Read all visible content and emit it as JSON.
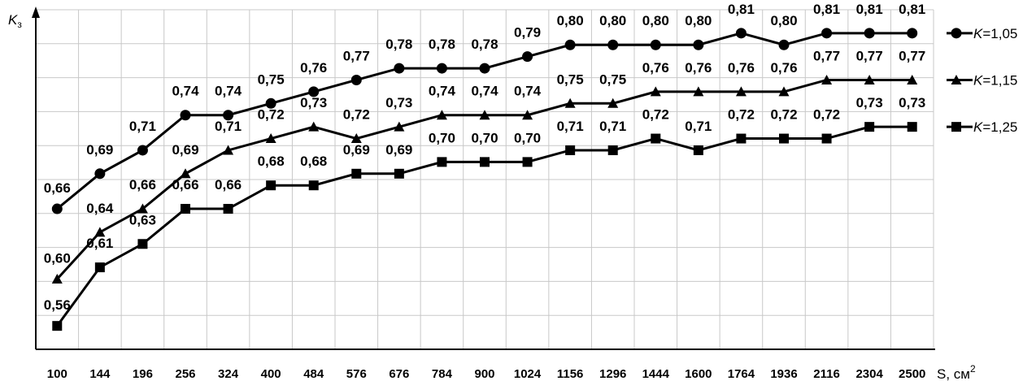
{
  "chart_data": {
    "type": "line",
    "x": [
      "100",
      "144",
      "196",
      "256",
      "324",
      "400",
      "484",
      "576",
      "676",
      "784",
      "900",
      "1024",
      "1156",
      "1296",
      "1444",
      "1600",
      "1764",
      "1936",
      "2116",
      "2304",
      "2500"
    ],
    "ylabel_main": "K",
    "ylabel_sub": "з",
    "xlabel": "S, см",
    "xlabel_sup": "2",
    "ylim": [
      0.54,
      0.83
    ],
    "grid": true,
    "legend_position": "right",
    "series": [
      {
        "name": "K=1,05",
        "legend_italic": "K",
        "legend_rest": "=1,05",
        "marker": "circle",
        "values": [
          0.66,
          0.69,
          0.71,
          0.74,
          0.74,
          0.75,
          0.76,
          0.77,
          0.78,
          0.78,
          0.78,
          0.79,
          0.8,
          0.8,
          0.8,
          0.8,
          0.81,
          0.8,
          0.81,
          0.81,
          0.81
        ],
        "labels": [
          "0,66",
          "0,69",
          "0,71",
          "0,74",
          "0,74",
          "0,75",
          "0,76",
          "0,77",
          "0,78",
          "0,78",
          "0,78",
          "0,79",
          "0,80",
          "0,80",
          "0,80",
          "0,80",
          "0,81",
          "0,80",
          "0,81",
          "0,81",
          "0,81"
        ]
      },
      {
        "name": "K=1,15",
        "legend_italic": "K",
        "legend_rest": "=1,15",
        "marker": "triangle",
        "values": [
          0.6,
          0.64,
          0.66,
          0.69,
          0.71,
          0.72,
          0.73,
          0.72,
          0.73,
          0.74,
          0.74,
          0.74,
          0.75,
          0.75,
          0.76,
          0.76,
          0.76,
          0.76,
          0.77,
          0.77,
          0.77
        ],
        "labels": [
          "0,60",
          "0,64",
          "0,66",
          "0,69",
          "0,71",
          "0,72",
          "0,73",
          "0,72",
          "0,73",
          "0,74",
          "0,74",
          "0,74",
          "0,75",
          "0,75",
          "0,76",
          "0,76",
          "0,76",
          "0,76",
          "0,77",
          "0,77",
          "0,77"
        ]
      },
      {
        "name": "K=1,25",
        "legend_italic": "K",
        "legend_rest": "=1,25",
        "marker": "square",
        "values": [
          0.56,
          0.61,
          0.63,
          0.66,
          0.66,
          0.68,
          0.68,
          0.69,
          0.69,
          0.7,
          0.7,
          0.7,
          0.71,
          0.71,
          0.72,
          0.71,
          0.72,
          0.72,
          0.72,
          0.73,
          0.73
        ],
        "labels": [
          "0,56",
          "0,61",
          "0,63",
          "0,66",
          "0,66",
          "0,68",
          "0,68",
          "0,69",
          "0,69",
          "0,70",
          "0,70",
          "0,70",
          "0,71",
          "0,71",
          "0,72",
          "0,71",
          "0,72",
          "0,72",
          "0,72",
          "0,73",
          "0,73"
        ]
      }
    ]
  }
}
